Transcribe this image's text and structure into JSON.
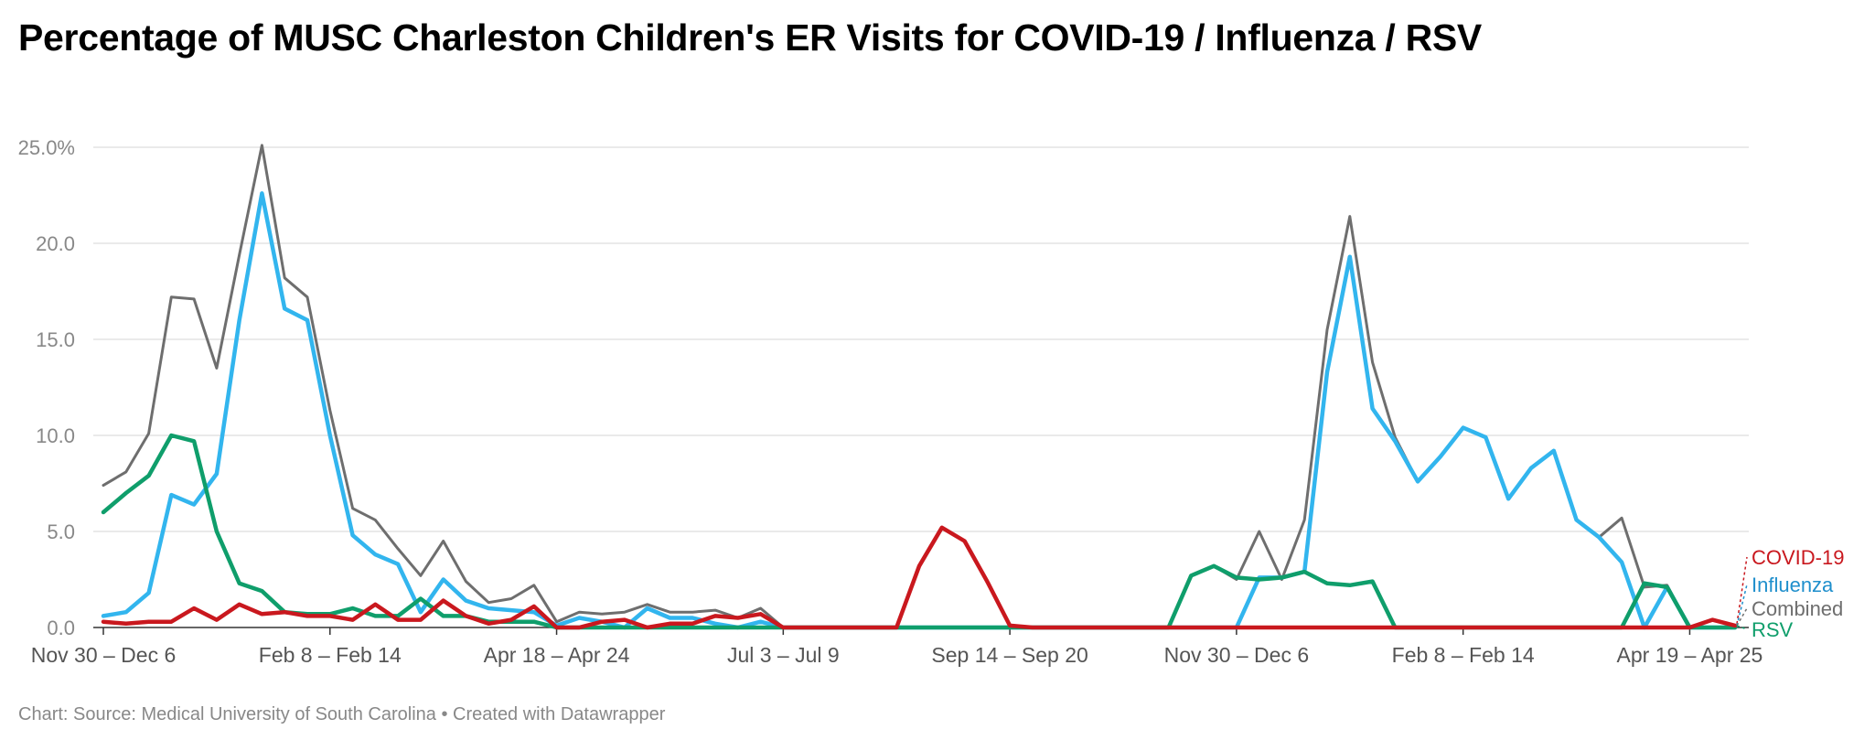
{
  "header": {
    "title": "Percentage of MUSC Charleston Children's ER Visits for COVID-19 / Influenza / RSV"
  },
  "footer": {
    "prefix": "Chart:",
    "source": "Source: Medical University of South Carolina",
    "separator": "•",
    "credit": "Created with Datawrapper"
  },
  "chart_data": {
    "type": "line",
    "title": "Percentage of MUSC Charleston Children's ER Visits for COVID-19 / Influenza / RSV",
    "xlabel": "",
    "ylabel": "",
    "ylim": [
      0,
      25
    ],
    "y_ticks": [
      0,
      5,
      10,
      15,
      20,
      25
    ],
    "y_tick_labels": [
      "0.0",
      "5.0",
      "10.0",
      "15.0",
      "20.0",
      "25.0%"
    ],
    "grid": true,
    "legend": "inline-right",
    "x_count": 73,
    "x_tick_labels": [
      {
        "index": 0,
        "label": "Nov 30 – Dec 6"
      },
      {
        "index": 10,
        "label": "Feb 8 – Feb 14"
      },
      {
        "index": 20,
        "label": "Apr 18 – Apr 24"
      },
      {
        "index": 30,
        "label": "Jul 3 – Jul 9"
      },
      {
        "index": 40,
        "label": "Sep 14 – Sep 20"
      },
      {
        "index": 50,
        "label": "Nov 30 – Dec 6"
      },
      {
        "index": 60,
        "label": "Feb 8 – Feb 14"
      },
      {
        "index": 70,
        "label": "Apr 19 – Apr 25"
      }
    ],
    "series": [
      {
        "name": "Combined",
        "color": "#6e6e6e",
        "values": [
          7.4,
          8.1,
          10.1,
          17.2,
          17.1,
          13.5,
          19.4,
          25.1,
          18.2,
          17.2,
          11.3,
          6.2,
          5.6,
          4.1,
          2.7,
          4.5,
          2.4,
          1.3,
          1.5,
          2.2,
          0.3,
          0.8,
          0.7,
          0.8,
          1.2,
          0.8,
          0.8,
          0.9,
          0.5,
          1.0,
          0.0,
          0.0,
          0.0,
          0.0,
          0.0,
          0.0,
          0.0,
          0.0,
          0.0,
          0.0,
          0.0,
          0.0,
          0.0,
          0.0,
          0.0,
          0.0,
          0.0,
          0.0,
          2.7,
          3.2,
          2.5,
          5.0,
          2.5,
          5.6,
          15.5,
          21.4,
          13.8,
          9.9,
          7.6,
          8.9,
          10.4,
          9.9,
          6.7,
          8.3,
          9.2,
          5.6,
          4.7,
          5.7,
          2.1,
          2.2,
          0.0,
          0.0,
          0.0
        ]
      },
      {
        "name": "Influenza",
        "color": "#32b5ee",
        "values": [
          0.6,
          0.8,
          1.8,
          6.9,
          6.4,
          8.0,
          16.0,
          22.6,
          16.6,
          16.0,
          10.0,
          4.8,
          3.8,
          3.3,
          0.8,
          2.5,
          1.4,
          1.0,
          0.9,
          0.8,
          0.1,
          0.5,
          0.3,
          0.0,
          1.0,
          0.5,
          0.5,
          0.2,
          0.0,
          0.3,
          0.0,
          0.0,
          0.0,
          0.0,
          0.0,
          0.0,
          0.0,
          0.0,
          0.0,
          0.0,
          0.0,
          0.0,
          0.0,
          0.0,
          0.0,
          0.0,
          0.0,
          0.0,
          0.0,
          0.0,
          0.0,
          2.6,
          2.6,
          2.9,
          13.3,
          19.3,
          11.4,
          9.7,
          7.6,
          8.9,
          10.4,
          9.9,
          6.7,
          8.3,
          9.2,
          5.6,
          4.7,
          3.4,
          0.0,
          2.1,
          0.0,
          0.0,
          0.0
        ]
      },
      {
        "name": "RSV",
        "color": "#0f9e6b",
        "values": [
          6.0,
          7.0,
          7.9,
          10.0,
          9.7,
          5.0,
          2.3,
          1.9,
          0.8,
          0.7,
          0.7,
          1.0,
          0.6,
          0.6,
          1.5,
          0.6,
          0.6,
          0.3,
          0.3,
          0.3,
          0.0,
          0.0,
          0.0,
          0.0,
          0.0,
          0.0,
          0.0,
          0.0,
          0.0,
          0.0,
          0.0,
          0.0,
          0.0,
          0.0,
          0.0,
          0.0,
          0.0,
          0.0,
          0.0,
          0.0,
          0.0,
          0.0,
          0.0,
          0.0,
          0.0,
          0.0,
          0.0,
          0.0,
          2.7,
          3.2,
          2.6,
          2.5,
          2.6,
          2.9,
          2.3,
          2.2,
          2.4,
          0.0,
          0.0,
          0.0,
          0.0,
          0.0,
          0.0,
          0.0,
          0.0,
          0.0,
          0.0,
          0.0,
          2.3,
          2.1,
          0.0,
          0.0,
          0.0
        ]
      },
      {
        "name": "COVID-19",
        "color": "#c9181e",
        "values": [
          0.3,
          0.2,
          0.3,
          0.3,
          1.0,
          0.4,
          1.2,
          0.7,
          0.8,
          0.6,
          0.6,
          0.4,
          1.2,
          0.4,
          0.4,
          1.4,
          0.6,
          0.2,
          0.4,
          1.1,
          0.0,
          0.0,
          0.3,
          0.4,
          0.0,
          0.2,
          0.2,
          0.6,
          0.5,
          0.7,
          0.0,
          0.0,
          0.0,
          0.0,
          0.0,
          0.0,
          3.2,
          5.2,
          4.5,
          2.4,
          0.1,
          0.0,
          0.0,
          0.0,
          0.0,
          0.0,
          0.0,
          0.0,
          0.0,
          0.0,
          0.0,
          0.0,
          0.0,
          0.0,
          0.0,
          0.0,
          0.0,
          0.0,
          0.0,
          0.0,
          0.0,
          0.0,
          0.0,
          0.0,
          0.0,
          0.0,
          0.0,
          0.0,
          0.0,
          0.0,
          0.0,
          0.4,
          0.1
        ]
      }
    ]
  }
}
